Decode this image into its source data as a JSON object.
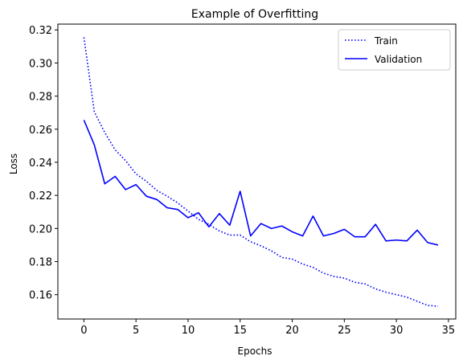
{
  "chart_data": {
    "type": "line",
    "title": "Example of Overfitting",
    "xlabel": "Epochs",
    "ylabel": "Loss",
    "xlim": [
      -2.5,
      35.7
    ],
    "ylim": [
      0.1453,
      0.3235
    ],
    "xticks": [
      0,
      5,
      10,
      15,
      20,
      25,
      30,
      35
    ],
    "yticks": [
      0.16,
      0.18,
      0.2,
      0.22,
      0.24,
      0.26,
      0.28,
      0.3,
      0.32
    ],
    "grid": false,
    "legend_position": "top-right",
    "x": [
      0,
      1,
      2,
      3,
      4,
      5,
      6,
      7,
      8,
      9,
      10,
      11,
      12,
      13,
      14,
      15,
      16,
      17,
      18,
      19,
      20,
      21,
      22,
      23,
      24,
      25,
      26,
      27,
      28,
      29,
      30,
      31,
      32,
      33,
      34
    ],
    "series": [
      {
        "name": "Train",
        "style": "dotted",
        "color": "#0000ff",
        "values": [
          0.3155,
          0.2705,
          0.258,
          0.2475,
          0.241,
          0.233,
          0.2285,
          0.223,
          0.2195,
          0.2155,
          0.2105,
          0.2055,
          0.2025,
          0.1985,
          0.196,
          0.196,
          0.192,
          0.1895,
          0.1865,
          0.1825,
          0.1815,
          0.1785,
          0.1765,
          0.173,
          0.171,
          0.17,
          0.1675,
          0.1665,
          0.1635,
          0.1615,
          0.16,
          0.1585,
          0.156,
          0.1535,
          0.153
        ]
      },
      {
        "name": "Validation",
        "style": "solid",
        "color": "#0000ff",
        "values": [
          0.2655,
          0.2505,
          0.227,
          0.2315,
          0.2235,
          0.2265,
          0.2195,
          0.2175,
          0.2125,
          0.2115,
          0.2065,
          0.2095,
          0.201,
          0.209,
          0.202,
          0.2225,
          0.1955,
          0.203,
          0.2,
          0.2015,
          0.198,
          0.1955,
          0.2075,
          0.1955,
          0.197,
          0.1995,
          0.195,
          0.195,
          0.2025,
          0.1925,
          0.193,
          0.1925,
          0.199,
          0.1915,
          0.19
        ]
      }
    ]
  }
}
